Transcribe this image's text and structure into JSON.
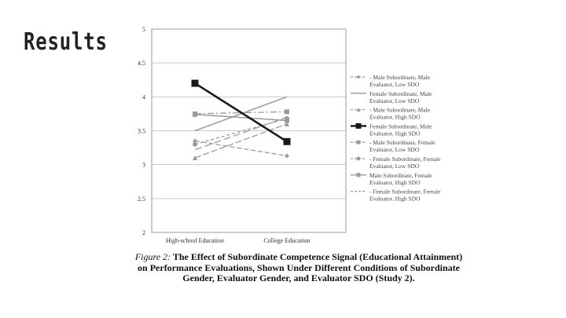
{
  "slide": {
    "title": "Results"
  },
  "caption": {
    "label": "Figure 2:",
    "text": "The Effect of Subordinate Competence Signal (Educational Attainment) on Performance Evaluations, Shown Under Different Conditions of Subordinate Gender, Evaluator Gender, and Evaluator SDO (Study 2)."
  },
  "colors": {
    "axis": "#999999",
    "grid": "#c8c8c8",
    "highlight": "#1a1a1a",
    "series_gray": "#9a9a9a"
  },
  "chart_data": {
    "type": "line",
    "title": "",
    "xlabel": "",
    "ylabel": "",
    "categories": [
      "High-school Education",
      "College Education"
    ],
    "ylim": [
      2,
      5
    ],
    "yticks": [
      "2",
      "2.5",
      "3",
      "3.5",
      "4",
      "4.5",
      "5"
    ],
    "grid": true,
    "legend_position": "right",
    "series": [
      {
        "name": "Male Subordinate, Male Evaluator, Low SDO",
        "legend_lines": [
          "- Male Subordinate, Male",
          "Evaluator, Low SDO"
        ],
        "values": [
          3.35,
          3.13
        ],
        "dash": "6 3",
        "marker": "diamond",
        "color": "#9a9a9a",
        "width": 1.3
      },
      {
        "name": "Female Subordinate, Male Evaluator, Low SDO",
        "legend_lines": [
          "Female Subordinate, Male",
          "Evaluator, Low SDO"
        ],
        "values": [
          3.5,
          4.0
        ],
        "dash": "",
        "marker": "none",
        "color": "#9a9a9a",
        "width": 1.5
      },
      {
        "name": "Male Subordinate, Male Evaluator, High SDO",
        "legend_lines": [
          "- Male Subordinate, Male",
          "Evaluator, High SDO"
        ],
        "values": [
          3.1,
          3.6
        ],
        "dash": "8 3",
        "marker": "triangle",
        "color": "#9a9a9a",
        "width": 1.3
      },
      {
        "name": "Female Subordinate, Male Evaluator, High SDO",
        "legend_lines": [
          "Female Subordinate, Male",
          "Evaluator, High SDO"
        ],
        "values": [
          4.2,
          3.34
        ],
        "dash": "",
        "marker": "square",
        "color": "#1a1a1a",
        "width": 2.6
      },
      {
        "name": "Male Subordinate, Female Evaluator, Low SDO",
        "legend_lines": [
          "- Male Subordinate, Female",
          "Evaluator, Low SDO"
        ],
        "values": [
          3.75,
          3.78
        ],
        "dash": "8 3 2 3",
        "marker": "square",
        "color": "#9a9a9a",
        "width": 1.3
      },
      {
        "name": "Female Subordinate, Female Evaluator, Low SDO",
        "legend_lines": [
          "- Female Subordinate, Female",
          "Evaluator, Low SDO"
        ],
        "values": [
          3.3,
          3.68
        ],
        "dash": "4 3",
        "marker": "circle",
        "color": "#9a9a9a",
        "width": 1.3
      },
      {
        "name": "Male Subordinate, Female Evaluator, High SDO",
        "legend_lines": [
          "Male Subordinate, Female",
          "Evaluator, High SDO"
        ],
        "values": [
          3.74,
          3.65
        ],
        "dash": "",
        "marker": "square",
        "color": "#9a9a9a",
        "width": 1.5
      },
      {
        "name": "Female Subordinate, Female Evaluator, High SDO",
        "legend_lines": [
          "- Female Subordinate, Female",
          "Evaluator, High SDO"
        ],
        "values": [
          3.22,
          3.7
        ],
        "dash": "9 4",
        "marker": "none",
        "color": "#9a9a9a",
        "width": 1.3
      }
    ]
  }
}
